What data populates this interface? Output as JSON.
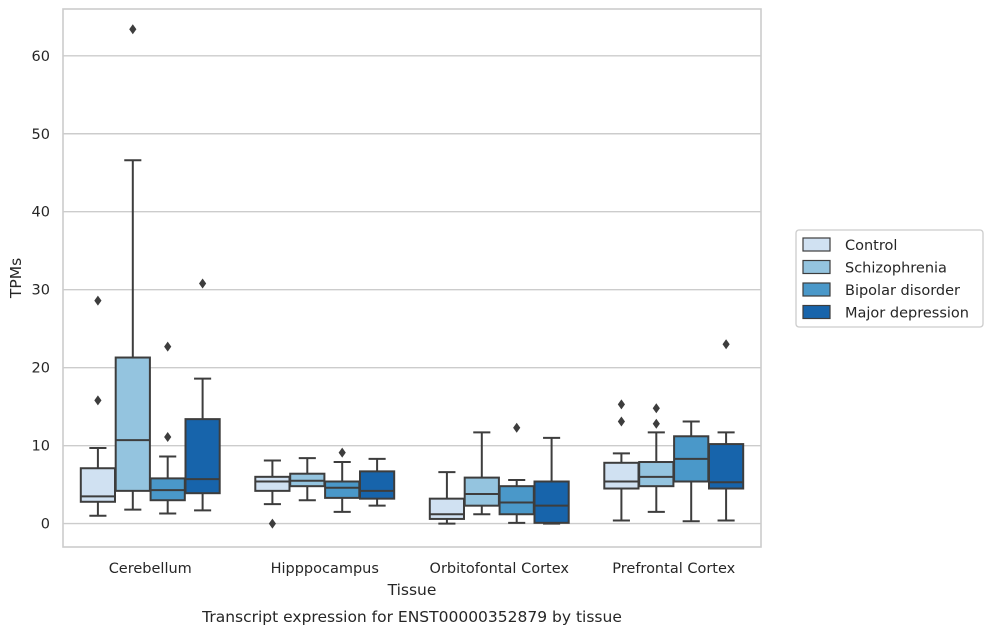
{
  "caption": "Transcript expression for ENST00000352879 by tissue",
  "chart_data": {
    "type": "box",
    "xlabel": "Tissue",
    "ylabel": "TPMs",
    "ylim": [
      -3,
      66
    ],
    "yticks": [
      0,
      10,
      20,
      30,
      40,
      50,
      60
    ],
    "grid": "horizontal",
    "legend_position": "right",
    "categories": [
      "Cerebellum",
      "Hipppocampus",
      "Orbitofontal Cortex",
      "Prefrontal Cortex"
    ],
    "series": [
      {
        "name": "Control",
        "color": "#d0e1f2",
        "boxes": [
          {
            "whislo": 1.0,
            "q1": 2.8,
            "med": 3.5,
            "q3": 7.1,
            "whishi": 9.7,
            "fliers": [
              15.8,
              28.6
            ]
          },
          {
            "whislo": 2.5,
            "q1": 4.2,
            "med": 5.4,
            "q3": 6.0,
            "whishi": 8.1,
            "fliers": [
              0.0
            ]
          },
          {
            "whislo": 0.0,
            "q1": 0.6,
            "med": 1.2,
            "q3": 3.2,
            "whishi": 6.6,
            "fliers": []
          },
          {
            "whislo": 0.4,
            "q1": 4.5,
            "med": 5.4,
            "q3": 7.8,
            "whishi": 9.0,
            "fliers": [
              13.1,
              15.3
            ]
          }
        ]
      },
      {
        "name": "Schizophrenia",
        "color": "#94c4df",
        "boxes": [
          {
            "whislo": 1.8,
            "q1": 4.2,
            "med": 10.7,
            "q3": 21.3,
            "whishi": 46.6,
            "fliers": [
              63.4
            ]
          },
          {
            "whislo": 3.0,
            "q1": 4.8,
            "med": 5.5,
            "q3": 6.4,
            "whishi": 8.4,
            "fliers": []
          },
          {
            "whislo": 1.2,
            "q1": 2.3,
            "med": 3.8,
            "q3": 5.9,
            "whishi": 11.7,
            "fliers": []
          },
          {
            "whislo": 1.5,
            "q1": 4.8,
            "med": 6.0,
            "q3": 7.9,
            "whishi": 11.7,
            "fliers": [
              12.8,
              14.8
            ]
          }
        ]
      },
      {
        "name": "Bipolar disorder",
        "color": "#4a98c9",
        "boxes": [
          {
            "whislo": 1.3,
            "q1": 3.0,
            "med": 4.3,
            "q3": 5.8,
            "whishi": 8.6,
            "fliers": [
              11.1,
              22.7
            ]
          },
          {
            "whislo": 1.5,
            "q1": 3.3,
            "med": 4.6,
            "q3": 5.4,
            "whishi": 7.9,
            "fliers": [
              9.1
            ]
          },
          {
            "whislo": 0.1,
            "q1": 1.2,
            "med": 2.7,
            "q3": 4.8,
            "whishi": 5.6,
            "fliers": [
              12.3
            ]
          },
          {
            "whislo": 0.3,
            "q1": 5.4,
            "med": 8.3,
            "q3": 11.2,
            "whishi": 13.1,
            "fliers": []
          }
        ]
      },
      {
        "name": "Major depression",
        "color": "#1764ab",
        "boxes": [
          {
            "whislo": 1.7,
            "q1": 3.9,
            "med": 5.7,
            "q3": 13.4,
            "whishi": 18.6,
            "fliers": [
              30.8
            ]
          },
          {
            "whislo": 2.3,
            "q1": 3.2,
            "med": 4.2,
            "q3": 6.7,
            "whishi": 8.3,
            "fliers": []
          },
          {
            "whislo": 0.0,
            "q1": 0.1,
            "med": 2.3,
            "q3": 5.4,
            "whishi": 11.0,
            "fliers": []
          },
          {
            "whislo": 0.4,
            "q1": 4.5,
            "med": 5.3,
            "q3": 10.2,
            "whishi": 11.7,
            "fliers": [
              23.0
            ]
          }
        ]
      }
    ]
  }
}
